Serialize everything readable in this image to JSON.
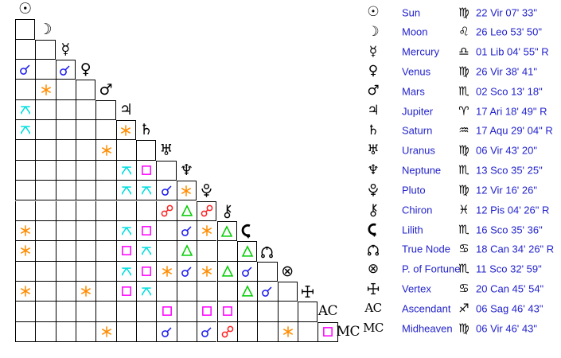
{
  "colors": {
    "background": "#ffffff",
    "grid_line": "#000000",
    "glyph": "#000000",
    "legend_text": "#2222cc"
  },
  "aspect_types": {
    "conjunction": {
      "label": "conjunction",
      "color": "#1a1aee"
    },
    "sextile": {
      "label": "sextile",
      "color": "#ff8c00"
    },
    "square": {
      "label": "square",
      "color": "#ff00ff"
    },
    "trine": {
      "label": "trine",
      "color": "#00cc00"
    },
    "opposition": {
      "label": "opposition",
      "color": "#ff2222"
    },
    "quincunx": {
      "label": "quincunx",
      "color": "#00dede"
    }
  },
  "planets": [
    {
      "id": "sun",
      "name": "Sun",
      "glyph": "☉",
      "glyph_kind": "text",
      "sign_id": "virgo",
      "sign_glyph": "♍",
      "position": "22 Vir 07' 33\""
    },
    {
      "id": "moon",
      "name": "Moon",
      "glyph": "☽",
      "glyph_kind": "text",
      "sign_id": "leo",
      "sign_glyph": "♌",
      "position": "26 Leo 53' 50\""
    },
    {
      "id": "mercury",
      "name": "Mercury",
      "glyph": "☿",
      "glyph_kind": "text",
      "sign_id": "libra",
      "sign_glyph": "♎",
      "position": "01 Lib 04' 55\" R"
    },
    {
      "id": "venus",
      "name": "Venus",
      "glyph": "♀",
      "glyph_kind": "text",
      "sign_id": "virgo",
      "sign_glyph": "♍",
      "position": "26 Vir 38' 41\""
    },
    {
      "id": "mars",
      "name": "Mars",
      "glyph": "♂",
      "glyph_kind": "text",
      "sign_id": "scorpio",
      "sign_glyph": "♏",
      "position": "02 Sco 13' 18\""
    },
    {
      "id": "jupiter",
      "name": "Jupiter",
      "glyph": "♃",
      "glyph_kind": "text",
      "sign_id": "aries",
      "sign_glyph": "♈",
      "position": "17 Ari 18' 49\" R"
    },
    {
      "id": "saturn",
      "name": "Saturn",
      "glyph": "♄",
      "glyph_kind": "text",
      "sign_id": "aquarius",
      "sign_glyph": "♒",
      "position": "17 Aqu 29' 04\" R"
    },
    {
      "id": "uranus",
      "name": "Uranus",
      "glyph": "♅",
      "glyph_kind": "text",
      "sign_id": "virgo",
      "sign_glyph": "♍",
      "position": "06 Vir 43' 20\""
    },
    {
      "id": "neptune",
      "name": "Neptune",
      "glyph": "♆",
      "glyph_kind": "text",
      "sign_id": "scorpio",
      "sign_glyph": "♏",
      "position": "13 Sco 35' 25\""
    },
    {
      "id": "pluto",
      "name": "Pluto",
      "glyph": "pluto",
      "glyph_kind": "svg",
      "sign_id": "virgo",
      "sign_glyph": "♍",
      "position": "12 Vir 16' 26\""
    },
    {
      "id": "chiron",
      "name": "Chiron",
      "glyph": "chiron",
      "glyph_kind": "svg",
      "sign_id": "pisces",
      "sign_glyph": "♓",
      "position": "12 Pis 04' 26\" R"
    },
    {
      "id": "lilith",
      "name": "Lilith",
      "glyph": "lilith",
      "glyph_kind": "svg",
      "sign_id": "scorpio",
      "sign_glyph": "♏",
      "position": "16 Sco 35' 36\""
    },
    {
      "id": "true-node",
      "name": "True Node",
      "glyph": "truenode",
      "glyph_kind": "svg",
      "sign_id": "cancer",
      "sign_glyph": "♋",
      "position": "18 Can 34' 26\" R"
    },
    {
      "id": "p-of-fortune",
      "name": "P. of Fortune",
      "glyph": "⊗",
      "glyph_kind": "text",
      "sign_id": "scorpio",
      "sign_glyph": "♏",
      "position": "11 Sco 32' 59\""
    },
    {
      "id": "vertex",
      "name": "Vertex",
      "glyph": "vertex",
      "glyph_kind": "svg",
      "sign_id": "cancer",
      "sign_glyph": "♋",
      "position": "20 Can 45' 54\""
    },
    {
      "id": "ascendant",
      "name": "Ascendant",
      "glyph": "AC",
      "glyph_kind": "label",
      "sign_id": "sagittarius",
      "sign_glyph": "♐",
      "position": "06 Sag 46' 43\""
    },
    {
      "id": "midheaven",
      "name": "Midheaven",
      "glyph": "MC",
      "glyph_kind": "label",
      "sign_id": "virgo",
      "sign_glyph": "♍",
      "position": "06 Vir 46' 43\""
    }
  ],
  "aspects": [
    {
      "row": 3,
      "col": 0,
      "type": "conjunction"
    },
    {
      "row": 3,
      "col": 2,
      "type": "conjunction"
    },
    {
      "row": 4,
      "col": 1,
      "type": "sextile"
    },
    {
      "row": 5,
      "col": 0,
      "type": "quincunx"
    },
    {
      "row": 6,
      "col": 0,
      "type": "quincunx"
    },
    {
      "row": 6,
      "col": 5,
      "type": "sextile"
    },
    {
      "row": 7,
      "col": 4,
      "type": "sextile"
    },
    {
      "row": 8,
      "col": 5,
      "type": "quincunx"
    },
    {
      "row": 8,
      "col": 6,
      "type": "square"
    },
    {
      "row": 9,
      "col": 5,
      "type": "quincunx"
    },
    {
      "row": 9,
      "col": 6,
      "type": "quincunx"
    },
    {
      "row": 9,
      "col": 7,
      "type": "conjunction"
    },
    {
      "row": 9,
      "col": 8,
      "type": "sextile"
    },
    {
      "row": 10,
      "col": 7,
      "type": "opposition"
    },
    {
      "row": 10,
      "col": 8,
      "type": "trine"
    },
    {
      "row": 10,
      "col": 9,
      "type": "opposition"
    },
    {
      "row": 11,
      "col": 0,
      "type": "sextile"
    },
    {
      "row": 11,
      "col": 5,
      "type": "quincunx"
    },
    {
      "row": 11,
      "col": 6,
      "type": "square"
    },
    {
      "row": 11,
      "col": 8,
      "type": "conjunction"
    },
    {
      "row": 11,
      "col": 9,
      "type": "sextile"
    },
    {
      "row": 11,
      "col": 10,
      "type": "trine"
    },
    {
      "row": 12,
      "col": 0,
      "type": "sextile"
    },
    {
      "row": 12,
      "col": 5,
      "type": "square"
    },
    {
      "row": 12,
      "col": 6,
      "type": "quincunx"
    },
    {
      "row": 12,
      "col": 8,
      "type": "trine"
    },
    {
      "row": 12,
      "col": 11,
      "type": "trine"
    },
    {
      "row": 13,
      "col": 5,
      "type": "quincunx"
    },
    {
      "row": 13,
      "col": 6,
      "type": "square"
    },
    {
      "row": 13,
      "col": 7,
      "type": "sextile"
    },
    {
      "row": 13,
      "col": 8,
      "type": "conjunction"
    },
    {
      "row": 13,
      "col": 9,
      "type": "sextile"
    },
    {
      "row": 13,
      "col": 10,
      "type": "trine"
    },
    {
      "row": 13,
      "col": 11,
      "type": "conjunction"
    },
    {
      "row": 14,
      "col": 0,
      "type": "sextile"
    },
    {
      "row": 14,
      "col": 3,
      "type": "sextile"
    },
    {
      "row": 14,
      "col": 5,
      "type": "square"
    },
    {
      "row": 14,
      "col": 6,
      "type": "quincunx"
    },
    {
      "row": 14,
      "col": 11,
      "type": "trine"
    },
    {
      "row": 14,
      "col": 12,
      "type": "conjunction"
    },
    {
      "row": 15,
      "col": 7,
      "type": "square"
    },
    {
      "row": 15,
      "col": 9,
      "type": "square"
    },
    {
      "row": 15,
      "col": 10,
      "type": "square"
    },
    {
      "row": 16,
      "col": 4,
      "type": "sextile"
    },
    {
      "row": 16,
      "col": 7,
      "type": "conjunction"
    },
    {
      "row": 16,
      "col": 9,
      "type": "conjunction"
    },
    {
      "row": 16,
      "col": 10,
      "type": "opposition"
    },
    {
      "row": 16,
      "col": 13,
      "type": "sextile"
    },
    {
      "row": 16,
      "col": 15,
      "type": "square"
    }
  ]
}
